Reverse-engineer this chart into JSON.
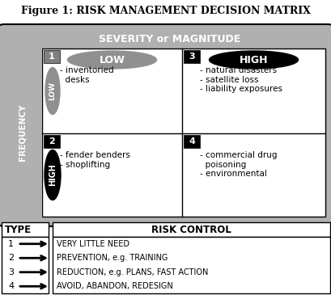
{
  "title": "Figure 1: RISK MANAGEMENT DECISION MATRIX",
  "severity_label": "SEVERITY or MAGNITUDE",
  "frequency_label": "FREQUENCY",
  "low_label": "LOW",
  "high_label": "HIGH",
  "quadrant_numbers": [
    "1",
    "2",
    "3",
    "4"
  ],
  "q1_text": "- inventoried\n  desks",
  "q2_text": "- fender benders\n- shoplifting",
  "q3_text": "- natural disasters\n- satellite loss\n- liability exposures",
  "q4_text": "- commercial drug\n  poisoning\n- environmental",
  "legend_types": [
    "1",
    "2",
    "3",
    "4"
  ],
  "legend_controls": [
    "VERY LITTLE NEED",
    "PREVENTION, e.g. TRAINING",
    "REDUCTION, e.g. PLANS, FAST ACTION",
    "AVOID, ABANDON, REDESIGN"
  ],
  "type_label": "TYPE",
  "risk_control_label": "RISK CONTROL",
  "bg_color": "#b0b0b0",
  "white": "#ffffff",
  "black": "#000000",
  "gray_ellipse": "#909090",
  "number_box_gray": "#808080",
  "number_box_black": "#000000",
  "fig_width": 4.1,
  "fig_height": 3.65,
  "dpi": 100
}
